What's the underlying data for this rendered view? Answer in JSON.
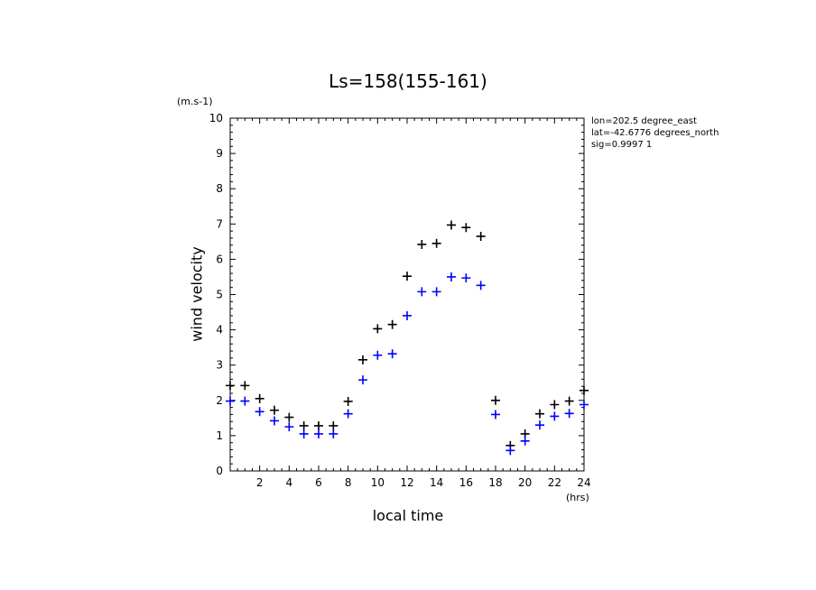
{
  "chart_data": {
    "type": "scatter",
    "title": "Ls=158(155-161)",
    "xlabel": "local time",
    "ylabel": "wind velocity",
    "y_unit": "(m.s-1)",
    "x_unit": "(hrs)",
    "xlim": [
      0,
      24
    ],
    "ylim": [
      0,
      10
    ],
    "x_ticks": [
      2,
      4,
      6,
      8,
      10,
      12,
      14,
      16,
      18,
      20,
      22,
      24
    ],
    "y_ticks": [
      0,
      1,
      2,
      3,
      4,
      5,
      6,
      7,
      8,
      9,
      10
    ],
    "grid": false,
    "annotations": [
      "lon=202.5 degree_east",
      "lat=-42.6776 degrees_north",
      "sig=0.9997 1"
    ],
    "series": [
      {
        "color": "#000000",
        "marker": "+",
        "x": [
          0,
          1,
          2,
          3,
          4,
          5,
          6,
          7,
          8,
          9,
          10,
          11,
          12,
          13,
          14,
          15,
          16,
          17,
          18,
          19,
          20,
          21,
          22,
          23,
          24
        ],
        "y": [
          2.42,
          2.42,
          2.05,
          1.72,
          1.52,
          1.28,
          1.28,
          1.28,
          1.97,
          3.15,
          4.03,
          4.15,
          5.52,
          6.42,
          6.45,
          6.97,
          6.9,
          6.65,
          2.0,
          0.72,
          1.05,
          1.62,
          1.88,
          1.98,
          2.28
        ]
      },
      {
        "color": "#0000ff",
        "marker": "+",
        "x": [
          0,
          1,
          2,
          3,
          4,
          5,
          6,
          7,
          8,
          9,
          10,
          11,
          12,
          13,
          14,
          15,
          16,
          17,
          18,
          19,
          20,
          21,
          22,
          23,
          24
        ],
        "y": [
          1.98,
          1.98,
          1.68,
          1.42,
          1.25,
          1.05,
          1.05,
          1.05,
          1.62,
          2.58,
          3.28,
          3.32,
          4.4,
          5.08,
          5.08,
          5.5,
          5.47,
          5.26,
          1.6,
          0.58,
          0.85,
          1.3,
          1.55,
          1.63,
          1.88
        ]
      }
    ]
  }
}
